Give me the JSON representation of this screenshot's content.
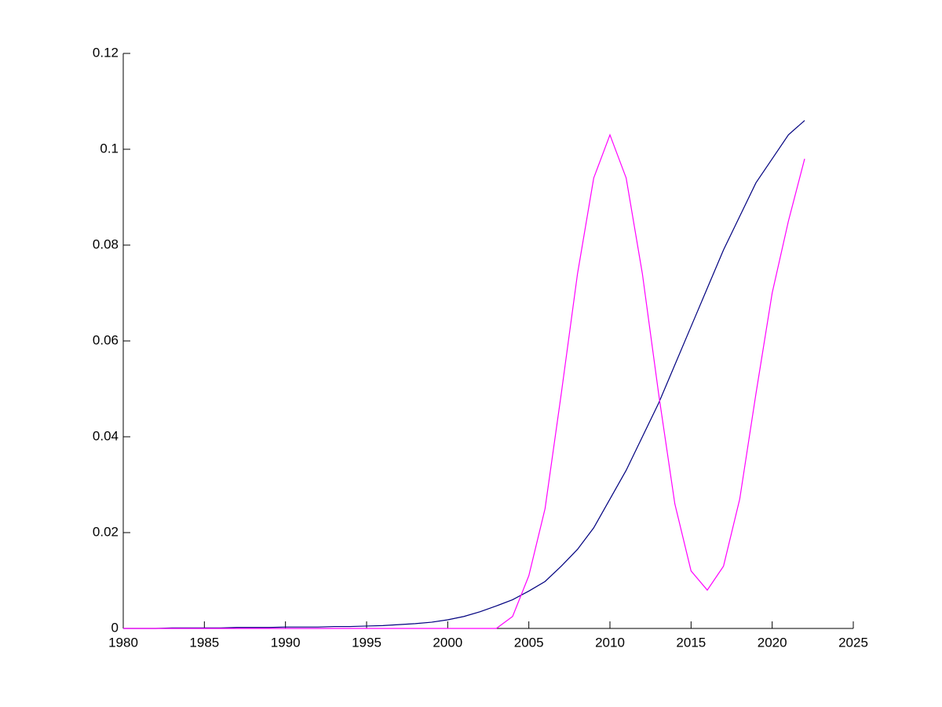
{
  "chart_data": {
    "type": "line",
    "x": [
      1980,
      1981,
      1982,
      1983,
      1984,
      1985,
      1986,
      1987,
      1988,
      1989,
      1990,
      1991,
      1992,
      1993,
      1994,
      1995,
      1996,
      1997,
      1998,
      1999,
      2000,
      2001,
      2002,
      2003,
      2004,
      2005,
      2006,
      2007,
      2008,
      2009,
      2010,
      2011,
      2012,
      2013,
      2014,
      2015,
      2016,
      2017,
      2018,
      2019,
      2020,
      2021,
      2022
    ],
    "series": [
      {
        "color": "#00007f",
        "values": [
          0,
          0,
          0,
          0.0001,
          0.0001,
          0.0001,
          0.0001,
          0.0002,
          0.0002,
          0.0002,
          0.0003,
          0.0003,
          0.0003,
          0.0004,
          0.0004,
          0.0005,
          0.0006,
          0.0008,
          0.001,
          0.0013,
          0.0018,
          0.0025,
          0.0035,
          0.0047,
          0.006,
          0.0078,
          0.0098,
          0.013,
          0.0165,
          0.021,
          0.027,
          0.033,
          0.04,
          0.047,
          0.055,
          0.063,
          0.071,
          0.079,
          0.086,
          0.093,
          0.098,
          0.103,
          0.106
        ]
      },
      {
        "color": "#ff00ff",
        "values": [
          0,
          0,
          0,
          0,
          0,
          0,
          0,
          0,
          0,
          0,
          0,
          0,
          0,
          0,
          0,
          0,
          0,
          0,
          0,
          0,
          0,
          0,
          0,
          0,
          0.0025,
          0.011,
          0.025,
          0.049,
          0.074,
          0.094,
          0.103,
          0.094,
          0.074,
          0.049,
          0.026,
          0.012,
          0.008,
          0.013,
          0.027,
          0.049,
          0.07,
          0.085,
          0.098
        ]
      }
    ],
    "xlim": [
      1980,
      2025
    ],
    "xticks": [
      1980,
      1985,
      1990,
      1995,
      2000,
      2005,
      2010,
      2015,
      2020,
      2025
    ],
    "ylim": [
      0,
      0.12
    ],
    "yticks": [
      0,
      0.02,
      0.04,
      0.06,
      0.08,
      0.1,
      0.12
    ]
  }
}
